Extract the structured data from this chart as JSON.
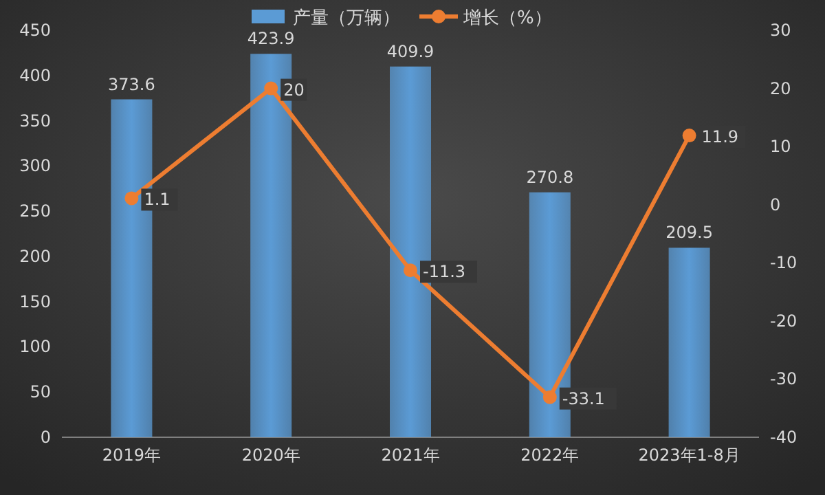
{
  "chart_data": {
    "type": "bar",
    "categories": [
      "2019年",
      "2020年",
      "2021年",
      "2022年",
      "2023年1-8月"
    ],
    "series": [
      {
        "name": "产量（万辆）",
        "color": "#5b9bd5",
        "values": [
          373.6,
          423.9,
          409.9,
          270.8,
          209.5
        ]
      },
      {
        "name": "增长（%）",
        "type": "line",
        "axis": "y2",
        "color": "#ed7d31",
        "marker": "circle",
        "values": [
          1.1,
          20,
          -11.3,
          -33.1,
          11.9
        ]
      }
    ],
    "ylim": [
      0,
      450
    ],
    "yticks": [
      0,
      50,
      100,
      150,
      200,
      250,
      300,
      350,
      400,
      450
    ],
    "y2lim": [
      -40,
      30
    ],
    "y2ticks": [
      -40,
      -30,
      -20,
      -10,
      0,
      10,
      20,
      30
    ],
    "legend": "top",
    "data_labels": true
  }
}
